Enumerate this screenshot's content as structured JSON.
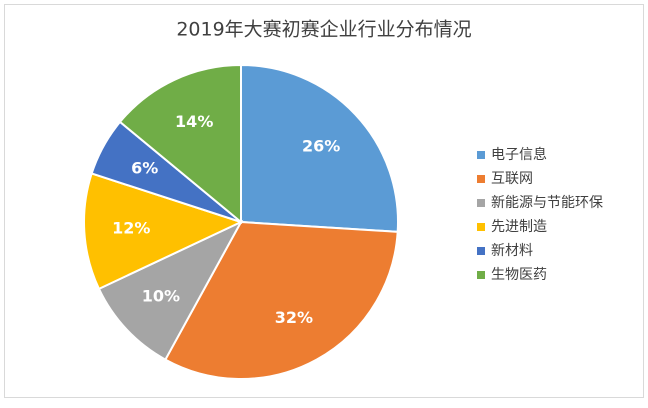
{
  "chart_data": {
    "type": "pie",
    "title": "2019年大赛初赛企业行业分布情况",
    "categories": [
      "电子信息",
      "互联网",
      "新能源与节能环保",
      "先进制造",
      "新材料",
      "生物医药"
    ],
    "values": [
      26,
      32,
      10,
      12,
      6,
      14
    ],
    "value_labels": [
      "26%",
      "32%",
      "10%",
      "12%",
      "6%",
      "14%"
    ],
    "colors": [
      "#5b9bd5",
      "#ed7d31",
      "#a5a5a5",
      "#ffc000",
      "#4472c4",
      "#70ad47"
    ],
    "legend": "right"
  }
}
